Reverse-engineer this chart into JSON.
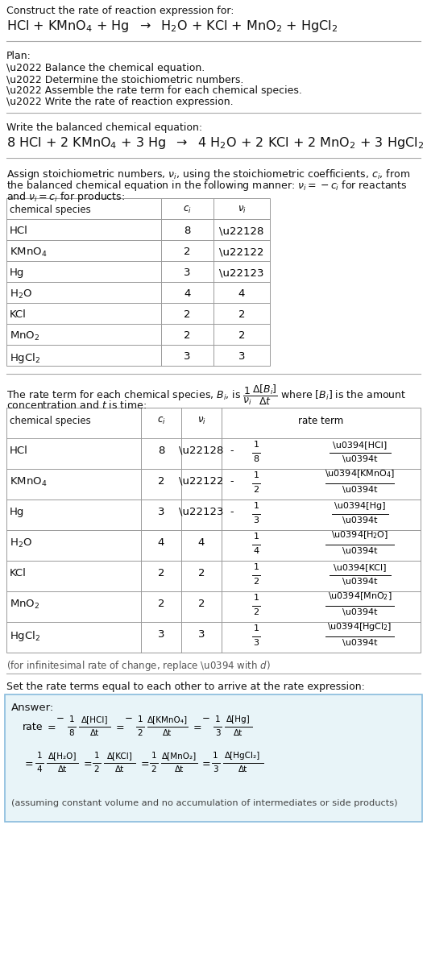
{
  "bg_color": "#ffffff",
  "title_line1": "Construct the rate of reaction expression for:",
  "unbalanced_eq": "HCl + KMnO$_4$ + Hg  $\\rightarrow$  H$_2$O + KCl + MnO$_2$ + HgCl$_2$",
  "plan_header": "Plan:",
  "plan_items": [
    "\\u2022 Balance the chemical equation.",
    "\\u2022 Determine the stoichiometric numbers.",
    "\\u2022 Assemble the rate term for each chemical species.",
    "\\u2022 Write the rate of reaction expression."
  ],
  "balanced_header": "Write the balanced chemical equation:",
  "balanced_eq": "8 HCl + 2 KMnO$_4$ + 3 Hg  $\\rightarrow$  4 H$_2$O + 2 KCl + 2 MnO$_2$ + 3 HgCl$_2$",
  "stoich_intro1": "Assign stoichiometric numbers, $\\nu_i$, using the stoichiometric coefficients, $c_i$, from",
  "stoich_intro2": "the balanced chemical equation in the following manner: $\\nu_i = -c_i$ for reactants",
  "stoich_intro3": "and $\\nu_i = c_i$ for products:",
  "table1_col_headers": [
    "chemical species",
    "$c_i$",
    "$\\nu_i$"
  ],
  "table1_rows": [
    [
      "HCl",
      "8",
      "\\u22128"
    ],
    [
      "KMnO$_4$",
      "2",
      "\\u22122"
    ],
    [
      "Hg",
      "3",
      "\\u22123"
    ],
    [
      "H$_2$O",
      "4",
      "4"
    ],
    [
      "KCl",
      "2",
      "2"
    ],
    [
      "MnO$_2$",
      "2",
      "2"
    ],
    [
      "HgCl$_2$",
      "3",
      "3"
    ]
  ],
  "rate_intro1": "The rate term for each chemical species, $B_i$, is $\\dfrac{1}{\\nu_i}\\dfrac{\\Delta[B_i]}{\\Delta t}$ where $[B_i]$ is the amount",
  "rate_intro2": "concentration and $t$ is time:",
  "table2_col_headers": [
    "chemical species",
    "$c_i$",
    "$\\nu_i$",
    "rate term"
  ],
  "table2_rows": [
    [
      "HCl",
      "8",
      "\\u22128",
      "-",
      "1",
      "8",
      "\\u0394[HCl]",
      "\\u0394t"
    ],
    [
      "KMnO$_4$",
      "2",
      "\\u22122",
      "-",
      "1",
      "2",
      "\\u0394[KMnO$_4$]",
      "\\u0394t"
    ],
    [
      "Hg",
      "3",
      "\\u22123",
      "-",
      "1",
      "3",
      "\\u0394[Hg]",
      "\\u0394t"
    ],
    [
      "H$_2$O",
      "4",
      "4",
      "",
      "1",
      "4",
      "\\u0394[H$_2$O]",
      "\\u0394t"
    ],
    [
      "KCl",
      "2",
      "2",
      "",
      "1",
      "2",
      "\\u0394[KCl]",
      "\\u0394t"
    ],
    [
      "MnO$_2$",
      "2",
      "2",
      "",
      "1",
      "2",
      "\\u0394[MnO$_2$]",
      "\\u0394t"
    ],
    [
      "HgCl$_2$",
      "3",
      "3",
      "",
      "1",
      "3",
      "\\u0394[HgCl$_2$]",
      "\\u0394t"
    ]
  ],
  "infinitesimal_note": "(for infinitesimal rate of change, replace \\u0394 with $d$)",
  "set_rate_text": "Set the rate terms equal to each other to arrive at the rate expression:",
  "answer_box_color": "#e8f4f8",
  "answer_box_border": "#88bbdd",
  "answer_label": "Answer:",
  "answer_note": "(assuming constant volume and no accumulation of intermediates or side products)"
}
